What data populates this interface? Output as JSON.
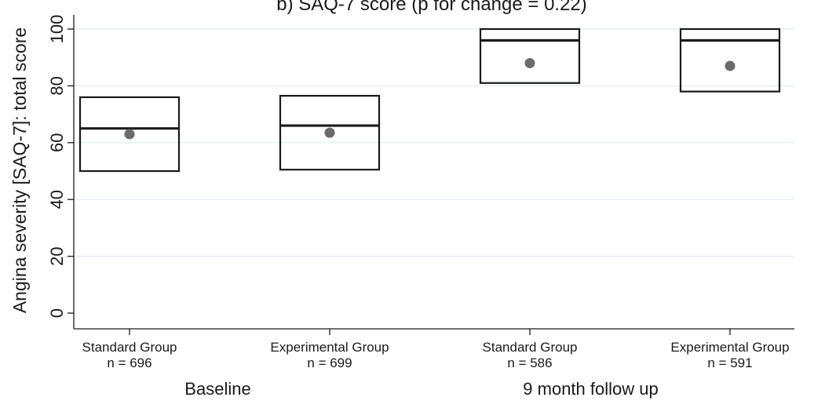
{
  "chart_data": {
    "type": "box",
    "title": "b) SAQ-7 score (p for change = 0.22)",
    "ylabel": "Angina severity [SAQ-7]: total score",
    "ylim": [
      0,
      100
    ],
    "yticks": [
      "0",
      "20",
      "40",
      "60",
      "80",
      "100"
    ],
    "grid": true,
    "groups": [
      "Baseline",
      "9 month follow up"
    ],
    "categories": [
      {
        "label": "Standard Group",
        "n_label": "n = 696",
        "group": "Baseline"
      },
      {
        "label": "Experimental Group",
        "n_label": "n = 699",
        "group": "Baseline"
      },
      {
        "label": "Standard Group",
        "n_label": "n = 586",
        "group": "9 month follow up"
      },
      {
        "label": "Experimental Group",
        "n_label": "n = 591",
        "group": "9 month follow up"
      }
    ],
    "boxes": [
      {
        "q1": 50,
        "median": 65,
        "q3": 76,
        "mean": 63
      },
      {
        "q1": 50.5,
        "median": 66,
        "q3": 76.5,
        "mean": 63.5
      },
      {
        "q1": 81,
        "median": 96,
        "q3": 100,
        "mean": 88
      },
      {
        "q1": 78,
        "median": 96,
        "q3": 100,
        "mean": 87
      }
    ],
    "colors": {
      "box": "#1a1a1a",
      "mean_marker": "#6b6b6b",
      "grid": "#e3ecef",
      "axis": "#1a1a1a"
    }
  }
}
